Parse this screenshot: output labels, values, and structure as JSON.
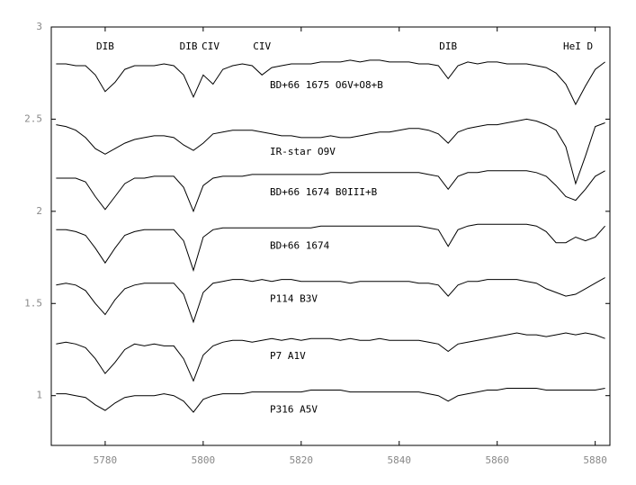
{
  "chart_data": {
    "type": "line",
    "x": [
      5770,
      5772,
      5774,
      5776,
      5778,
      5780,
      5782,
      5784,
      5786,
      5788,
      5790,
      5792,
      5794,
      5796,
      5798,
      5800,
      5802,
      5804,
      5806,
      5808,
      5810,
      5812,
      5814,
      5816,
      5818,
      5820,
      5822,
      5824,
      5826,
      5828,
      5830,
      5832,
      5834,
      5836,
      5838,
      5840,
      5842,
      5844,
      5846,
      5848,
      5850,
      5852,
      5854,
      5856,
      5858,
      5860,
      5862,
      5864,
      5866,
      5868,
      5870,
      5872,
      5874,
      5876,
      5878,
      5880,
      5882
    ],
    "series": [
      {
        "name": "BD+66 1675 O6V+O8+B",
        "color": "#000000",
        "values": [
          2.8,
          2.8,
          2.79,
          2.79,
          2.74,
          2.65,
          2.7,
          2.77,
          2.79,
          2.79,
          2.79,
          2.8,
          2.79,
          2.74,
          2.62,
          2.74,
          2.69,
          2.77,
          2.79,
          2.8,
          2.79,
          2.74,
          2.78,
          2.79,
          2.8,
          2.8,
          2.8,
          2.81,
          2.81,
          2.81,
          2.82,
          2.81,
          2.82,
          2.82,
          2.81,
          2.81,
          2.81,
          2.8,
          2.8,
          2.79,
          2.72,
          2.79,
          2.81,
          2.8,
          2.81,
          2.81,
          2.8,
          2.8,
          2.8,
          2.79,
          2.78,
          2.75,
          2.69,
          2.58,
          2.68,
          2.77,
          2.81
        ]
      },
      {
        "name": "IR-star O9V",
        "color": "#000000",
        "values": [
          2.47,
          2.46,
          2.44,
          2.4,
          2.34,
          2.31,
          2.34,
          2.37,
          2.39,
          2.4,
          2.41,
          2.41,
          2.4,
          2.36,
          2.33,
          2.37,
          2.42,
          2.43,
          2.44,
          2.44,
          2.44,
          2.43,
          2.42,
          2.41,
          2.41,
          2.4,
          2.4,
          2.4,
          2.41,
          2.4,
          2.4,
          2.41,
          2.42,
          2.43,
          2.43,
          2.44,
          2.45,
          2.45,
          2.44,
          2.42,
          2.37,
          2.43,
          2.45,
          2.46,
          2.47,
          2.47,
          2.48,
          2.49,
          2.5,
          2.49,
          2.47,
          2.44,
          2.35,
          2.15,
          2.3,
          2.46,
          2.48
        ]
      },
      {
        "name": "BD+66 1674 B0III+B",
        "color": "#000000",
        "values": [
          2.18,
          2.18,
          2.18,
          2.16,
          2.08,
          2.01,
          2.08,
          2.15,
          2.18,
          2.18,
          2.19,
          2.19,
          2.19,
          2.13,
          2.0,
          2.14,
          2.18,
          2.19,
          2.19,
          2.19,
          2.2,
          2.2,
          2.2,
          2.2,
          2.2,
          2.2,
          2.2,
          2.2,
          2.21,
          2.21,
          2.21,
          2.21,
          2.21,
          2.21,
          2.21,
          2.21,
          2.21,
          2.21,
          2.2,
          2.19,
          2.12,
          2.19,
          2.21,
          2.21,
          2.22,
          2.22,
          2.22,
          2.22,
          2.22,
          2.21,
          2.19,
          2.14,
          2.08,
          2.06,
          2.12,
          2.19,
          2.22
        ]
      },
      {
        "name": "BD+66 1674",
        "color": "#000000",
        "values": [
          1.9,
          1.9,
          1.89,
          1.87,
          1.8,
          1.72,
          1.8,
          1.87,
          1.89,
          1.9,
          1.9,
          1.9,
          1.9,
          1.84,
          1.68,
          1.86,
          1.9,
          1.91,
          1.91,
          1.91,
          1.91,
          1.91,
          1.91,
          1.91,
          1.91,
          1.91,
          1.91,
          1.92,
          1.92,
          1.92,
          1.92,
          1.92,
          1.92,
          1.92,
          1.92,
          1.92,
          1.92,
          1.92,
          1.91,
          1.9,
          1.81,
          1.9,
          1.92,
          1.93,
          1.93,
          1.93,
          1.93,
          1.93,
          1.93,
          1.92,
          1.89,
          1.83,
          1.83,
          1.86,
          1.84,
          1.86,
          1.92
        ]
      },
      {
        "name": "P114 B3V",
        "color": "#000000",
        "values": [
          1.6,
          1.61,
          1.6,
          1.57,
          1.5,
          1.44,
          1.52,
          1.58,
          1.6,
          1.61,
          1.61,
          1.61,
          1.61,
          1.55,
          1.4,
          1.56,
          1.61,
          1.62,
          1.63,
          1.63,
          1.62,
          1.63,
          1.62,
          1.63,
          1.63,
          1.62,
          1.62,
          1.62,
          1.62,
          1.62,
          1.61,
          1.62,
          1.62,
          1.62,
          1.62,
          1.62,
          1.62,
          1.61,
          1.61,
          1.6,
          1.54,
          1.6,
          1.62,
          1.62,
          1.63,
          1.63,
          1.63,
          1.63,
          1.62,
          1.61,
          1.58,
          1.56,
          1.54,
          1.55,
          1.58,
          1.61,
          1.64
        ]
      },
      {
        "name": "P7 A1V",
        "color": "#000000",
        "values": [
          1.28,
          1.29,
          1.28,
          1.26,
          1.2,
          1.12,
          1.18,
          1.25,
          1.28,
          1.27,
          1.28,
          1.27,
          1.27,
          1.2,
          1.08,
          1.22,
          1.27,
          1.29,
          1.3,
          1.3,
          1.29,
          1.3,
          1.31,
          1.3,
          1.31,
          1.3,
          1.31,
          1.31,
          1.31,
          1.3,
          1.31,
          1.3,
          1.3,
          1.31,
          1.3,
          1.3,
          1.3,
          1.3,
          1.29,
          1.28,
          1.24,
          1.28,
          1.29,
          1.3,
          1.31,
          1.32,
          1.33,
          1.34,
          1.33,
          1.33,
          1.32,
          1.33,
          1.34,
          1.33,
          1.34,
          1.33,
          1.31
        ]
      },
      {
        "name": "P316 A5V",
        "color": "#000000",
        "values": [
          1.01,
          1.01,
          1.0,
          0.99,
          0.95,
          0.92,
          0.96,
          0.99,
          1.0,
          1.0,
          1.0,
          1.01,
          1.0,
          0.97,
          0.91,
          0.98,
          1.0,
          1.01,
          1.01,
          1.01,
          1.02,
          1.02,
          1.02,
          1.02,
          1.02,
          1.02,
          1.03,
          1.03,
          1.03,
          1.03,
          1.02,
          1.02,
          1.02,
          1.02,
          1.02,
          1.02,
          1.02,
          1.02,
          1.01,
          1.0,
          0.97,
          1.0,
          1.01,
          1.02,
          1.03,
          1.03,
          1.04,
          1.04,
          1.04,
          1.04,
          1.03,
          1.03,
          1.03,
          1.03,
          1.03,
          1.03,
          1.04
        ]
      }
    ],
    "annotations": [
      {
        "text": "DIB",
        "x": 5780
      },
      {
        "text": "DIB",
        "x": 5797
      },
      {
        "text": "CIV",
        "x": 5801.5
      },
      {
        "text": "CIV",
        "x": 5812
      },
      {
        "text": "DIB",
        "x": 5850
      },
      {
        "text": "HeI D",
        "x": 5876.5
      }
    ],
    "xlim": [
      5769,
      5883
    ],
    "ylim": [
      0.73,
      3
    ],
    "xticks": [
      5780,
      5800,
      5820,
      5840,
      5860,
      5880
    ],
    "yticks": [
      1,
      1.5,
      2,
      2.5,
      3
    ],
    "grid": false
  }
}
